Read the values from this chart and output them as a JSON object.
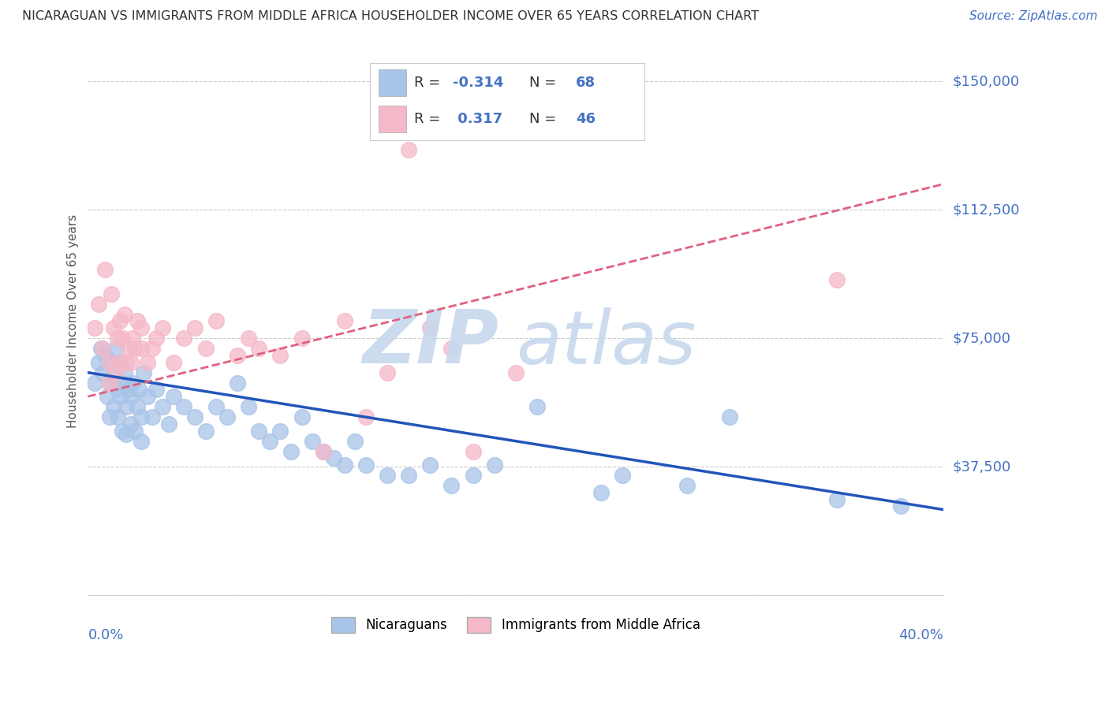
{
  "title": "NICARAGUAN VS IMMIGRANTS FROM MIDDLE AFRICA HOUSEHOLDER INCOME OVER 65 YEARS CORRELATION CHART",
  "source": "Source: ZipAtlas.com",
  "ylabel": "Householder Income Over 65 years",
  "y_ticks": [
    0,
    37500,
    75000,
    112500,
    150000
  ],
  "y_tick_labels": [
    "",
    "$37,500",
    "$75,000",
    "$112,500",
    "$150,000"
  ],
  "x_min": 0.0,
  "x_max": 40.0,
  "y_min": 0,
  "y_max": 160000,
  "blue_R": "-0.314",
  "blue_N": "68",
  "pink_R": "0.317",
  "pink_N": "46",
  "blue_color": "#a8c4e8",
  "pink_color": "#f5b8c8",
  "blue_line_color": "#2255bb",
  "pink_line_color": "#e06080",
  "legend_text_color": "#4472c4",
  "watermark_zip": "ZIP",
  "watermark_atlas": "atlas",
  "blue_scatter_x": [
    0.3,
    0.5,
    0.6,
    0.7,
    0.8,
    0.9,
    1.0,
    1.0,
    1.1,
    1.2,
    1.2,
    1.3,
    1.4,
    1.4,
    1.5,
    1.5,
    1.6,
    1.6,
    1.7,
    1.8,
    1.8,
    1.9,
    2.0,
    2.0,
    2.1,
    2.2,
    2.3,
    2.4,
    2.5,
    2.5,
    2.6,
    2.8,
    3.0,
    3.2,
    3.5,
    3.8,
    4.0,
    4.5,
    5.0,
    5.5,
    6.0,
    6.5,
    7.0,
    7.5,
    8.0,
    8.5,
    9.0,
    9.5,
    10.0,
    10.5,
    11.0,
    11.5,
    12.0,
    12.5,
    13.0,
    14.0,
    15.0,
    16.0,
    17.0,
    18.0,
    19.0,
    21.0,
    24.0,
    25.0,
    28.0,
    30.0,
    35.0,
    38.0
  ],
  "blue_scatter_y": [
    62000,
    68000,
    72000,
    65000,
    70000,
    58000,
    62000,
    52000,
    68000,
    64000,
    55000,
    72000,
    60000,
    52000,
    68000,
    58000,
    62000,
    48000,
    65000,
    55000,
    47000,
    60000,
    58000,
    50000,
    62000,
    48000,
    55000,
    60000,
    52000,
    45000,
    65000,
    58000,
    52000,
    60000,
    55000,
    50000,
    58000,
    55000,
    52000,
    48000,
    55000,
    52000,
    62000,
    55000,
    48000,
    45000,
    48000,
    42000,
    52000,
    45000,
    42000,
    40000,
    38000,
    45000,
    38000,
    35000,
    35000,
    38000,
    32000,
    35000,
    38000,
    55000,
    30000,
    35000,
    32000,
    52000,
    28000,
    26000
  ],
  "pink_scatter_x": [
    0.3,
    0.5,
    0.7,
    0.8,
    1.0,
    1.0,
    1.1,
    1.2,
    1.3,
    1.4,
    1.5,
    1.5,
    1.6,
    1.7,
    1.8,
    1.9,
    2.0,
    2.1,
    2.2,
    2.3,
    2.5,
    2.5,
    2.8,
    3.0,
    3.2,
    3.5,
    4.0,
    4.5,
    5.0,
    5.5,
    6.0,
    7.0,
    7.5,
    8.0,
    9.0,
    10.0,
    11.0,
    12.0,
    13.0,
    14.0,
    15.0,
    16.0,
    17.0,
    18.0,
    20.0,
    35.0
  ],
  "pink_scatter_y": [
    78000,
    85000,
    72000,
    95000,
    68000,
    62000,
    88000,
    78000,
    65000,
    75000,
    80000,
    68000,
    75000,
    82000,
    68000,
    72000,
    68000,
    75000,
    72000,
    80000,
    72000,
    78000,
    68000,
    72000,
    75000,
    78000,
    68000,
    75000,
    78000,
    72000,
    80000,
    70000,
    75000,
    72000,
    70000,
    75000,
    42000,
    80000,
    52000,
    65000,
    130000,
    78000,
    72000,
    42000,
    65000,
    92000
  ]
}
